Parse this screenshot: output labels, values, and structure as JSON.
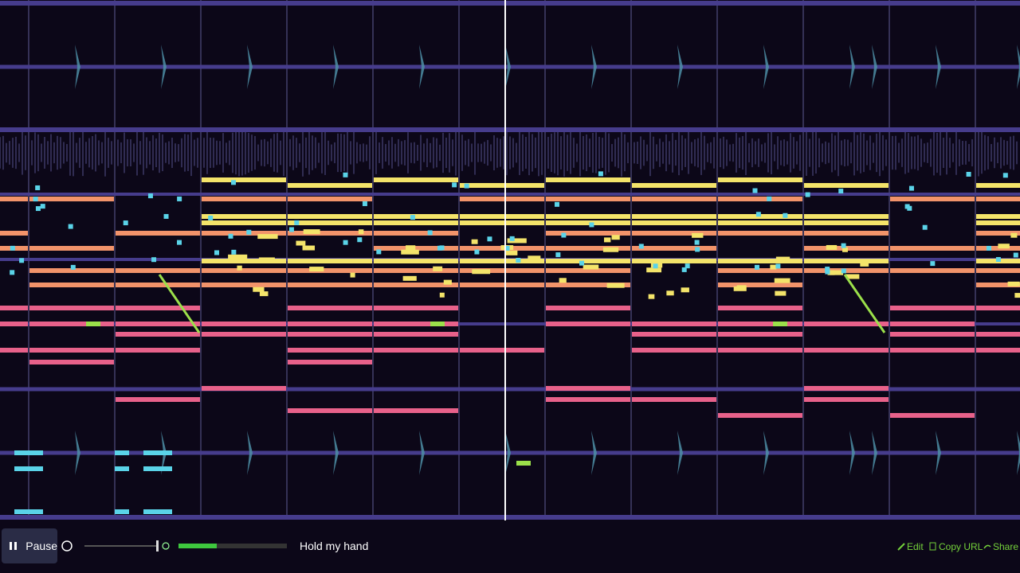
{
  "player": {
    "play_button": "Pause",
    "song_title": "Hold my hand"
  },
  "links": {
    "edit": "Edit",
    "copy_url": "Copy URL",
    "share": "Share"
  }
}
